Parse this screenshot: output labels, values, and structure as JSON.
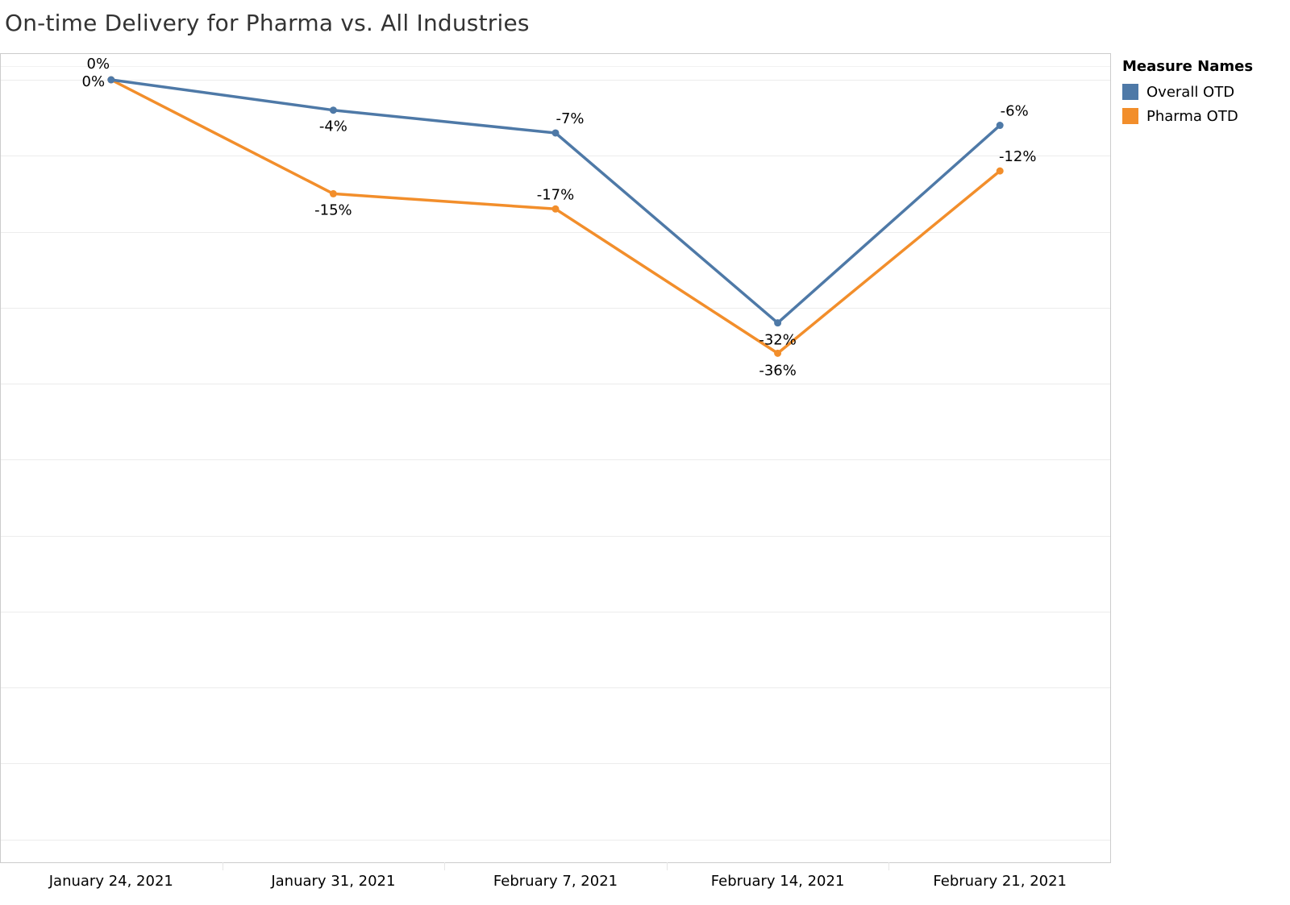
{
  "title": "On-time Delivery for Pharma vs. All Industries",
  "legend": {
    "title": "Measure Names",
    "items": [
      {
        "label": "Overall OTD",
        "color": "#4e79a7"
      },
      {
        "label": "Pharma OTD",
        "color": "#f28e2b"
      }
    ]
  },
  "chart_data": {
    "type": "line",
    "title": "On-time Delivery for Pharma vs. All Industries",
    "categories": [
      "January 24, 2021",
      "January 31, 2021",
      "February 7, 2021",
      "February 14, 2021",
      "February 21, 2021"
    ],
    "series": [
      {
        "name": "Overall OTD",
        "color": "#4e79a7",
        "values": [
          0,
          -4,
          -7,
          -32,
          -6
        ],
        "labels": [
          "0%",
          "-4%",
          "-7%",
          "-32%",
          "-6%"
        ]
      },
      {
        "name": "Pharma OTD",
        "color": "#f28e2b",
        "values": [
          0,
          -15,
          -17,
          -36,
          -12
        ],
        "labels": [
          "0%",
          "-15%",
          "-17%",
          "-36%",
          "-12%"
        ]
      }
    ],
    "ylim": [
      -103,
      3.5
    ],
    "grid": true,
    "legend_position": "right"
  }
}
